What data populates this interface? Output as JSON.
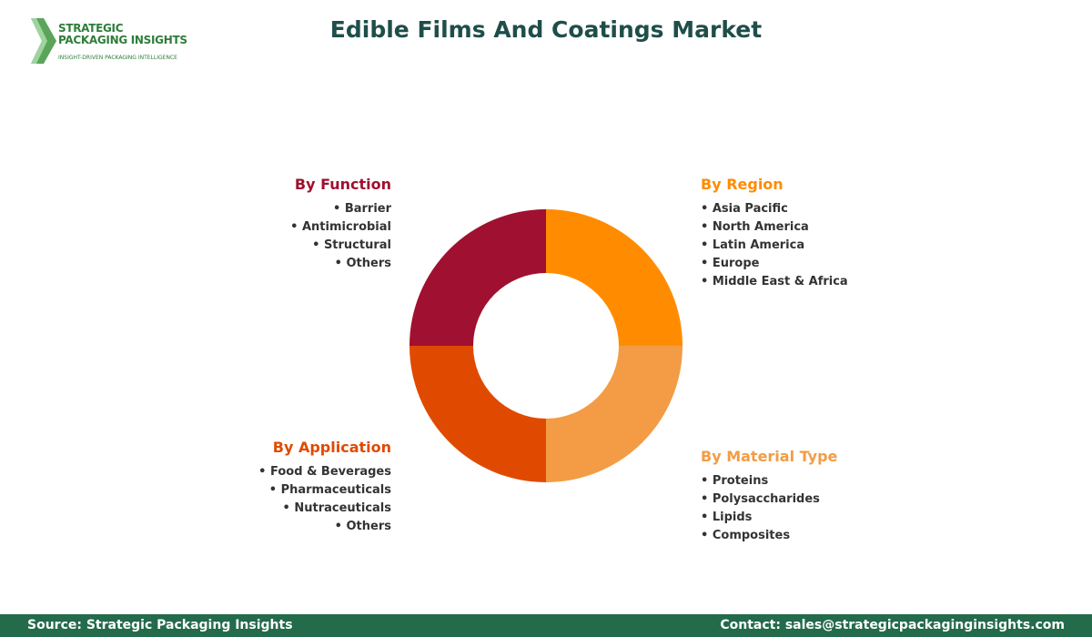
{
  "header": {
    "title": "Edible Films And Coatings Market",
    "logo": {
      "name_line1": "STRATEGIC",
      "name_line2": "PACKAGING INSIGHTS",
      "tagline": "INSIGHT-DRIVEN PACKAGING INTELLIGENCE"
    }
  },
  "segments": [
    {
      "title": "By Function",
      "items": [
        "Barrier",
        "Antimicrobial",
        "Structural",
        "Others"
      ]
    },
    {
      "title": "By Region",
      "items": [
        "Asia Pacific",
        "North America",
        "Latin America",
        "Europe",
        "Middle East & Africa"
      ]
    },
    {
      "title": "By Application",
      "items": [
        "Food & Beverages",
        "Pharmaceuticals",
        "Nutraceuticals",
        "Others"
      ]
    },
    {
      "title": "By Material Type",
      "items": [
        "Proteins",
        "Polysaccharides",
        "Lipids",
        "Composites"
      ]
    }
  ],
  "footer": {
    "source": "Source: Strategic Packaging Insights",
    "contact": "Contact: sales@strategicpackaginginsights.com"
  }
}
